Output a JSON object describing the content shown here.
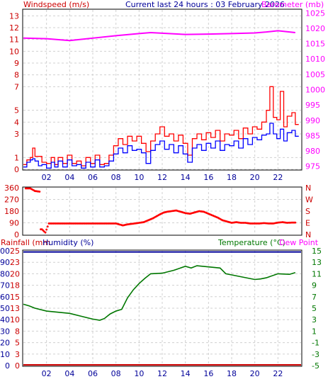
{
  "header": {
    "windspeed_label": "Windspeed (m/s)",
    "title": "Current last 24 hours : 03 February 2026",
    "barometer_label": "Barometer (mb)"
  },
  "footer": {
    "rainfall_label": "Rainfall (mm",
    "humidity_label": "Humidity (%)",
    "temperature_label": "Temperature (°C)",
    "dewpoint_label": "Dew Point"
  },
  "colors": {
    "wind_gust": "#ff0000",
    "wind_avg": "#0000ff",
    "barometer": "#ff00ff",
    "direction": "#ff0000",
    "temperature": "#007700",
    "humidity": "#000099",
    "rainfall": "#cc0000",
    "left_axis_text": "#cc0000",
    "right_axis_text": "#ff00ff",
    "grid": "#d0d0d0"
  },
  "chart_data": [
    {
      "type": "line",
      "name": "wind-barometer",
      "x_tick_labels": [
        "02",
        "04",
        "06",
        "08",
        "10",
        "12",
        "14",
        "16",
        "18",
        "20",
        "22"
      ],
      "x_tick_hours": [
        2,
        4,
        6,
        8,
        10,
        12,
        14,
        16,
        18,
        20,
        22
      ],
      "xlim": [
        0,
        24
      ],
      "y_left": {
        "ticks": [
          0,
          1,
          3,
          4,
          5,
          7,
          8,
          9,
          10,
          11,
          12,
          13
        ],
        "ylim": [
          0,
          13.5
        ]
      },
      "y_right": {
        "ticks": [
          975,
          980,
          985,
          990,
          995,
          1000,
          1005,
          1010,
          1015,
          1020,
          1025
        ],
        "ylim": [
          974,
          1026
        ]
      },
      "series": [
        {
          "key": "gust",
          "axis": "left",
          "points": [
            [
              0,
              0.4
            ],
            [
              0.3,
              0.8
            ],
            [
              0.6,
              1.0
            ],
            [
              0.8,
              1.8
            ],
            [
              1.0,
              1.1
            ],
            [
              1.3,
              1.1
            ],
            [
              1.6,
              0.6
            ],
            [
              2.0,
              0.5
            ],
            [
              2.4,
              1.0
            ],
            [
              2.7,
              0.4
            ],
            [
              3.0,
              1.0
            ],
            [
              3.4,
              0.5
            ],
            [
              3.8,
              1.2
            ],
            [
              4.2,
              0.5
            ],
            [
              4.6,
              0.7
            ],
            [
              5.0,
              0.3
            ],
            [
              5.4,
              1.0
            ],
            [
              5.8,
              0.5
            ],
            [
              6.2,
              1.2
            ],
            [
              6.6,
              0.4
            ],
            [
              7.0,
              0.5
            ],
            [
              7.4,
              1.2
            ],
            [
              7.8,
              2.0
            ],
            [
              8.2,
              2.6
            ],
            [
              8.6,
              2.1
            ],
            [
              9.0,
              2.8
            ],
            [
              9.4,
              2.4
            ],
            [
              9.8,
              2.8
            ],
            [
              10.2,
              2.2
            ],
            [
              10.6,
              1.5
            ],
            [
              11.0,
              2.4
            ],
            [
              11.4,
              3.0
            ],
            [
              11.8,
              3.6
            ],
            [
              12.2,
              2.8
            ],
            [
              12.6,
              3.0
            ],
            [
              13.0,
              2.4
            ],
            [
              13.4,
              2.9
            ],
            [
              13.8,
              2.2
            ],
            [
              14.2,
              1.2
            ],
            [
              14.6,
              2.6
            ],
            [
              15.0,
              3.0
            ],
            [
              15.4,
              2.5
            ],
            [
              15.8,
              3.1
            ],
            [
              16.2,
              2.7
            ],
            [
              16.6,
              3.3
            ],
            [
              17.0,
              2.4
            ],
            [
              17.4,
              3.0
            ],
            [
              17.8,
              2.9
            ],
            [
              18.2,
              3.3
            ],
            [
              18.6,
              2.6
            ],
            [
              19.0,
              3.5
            ],
            [
              19.4,
              3.0
            ],
            [
              19.8,
              3.6
            ],
            [
              20.2,
              3.4
            ],
            [
              20.6,
              4.0
            ],
            [
              21.0,
              5.0
            ],
            [
              21.3,
              7.0
            ],
            [
              21.6,
              4.4
            ],
            [
              21.9,
              4.2
            ],
            [
              22.2,
              6.6
            ],
            [
              22.5,
              3.6
            ],
            [
              22.8,
              4.5
            ],
            [
              23.2,
              4.8
            ],
            [
              23.5,
              3.8
            ]
          ]
        },
        {
          "key": "average",
          "axis": "left",
          "points": [
            [
              0,
              0.2
            ],
            [
              0.3,
              0.6
            ],
            [
              0.6,
              0.8
            ],
            [
              0.8,
              0.9
            ],
            [
              1.0,
              0.7
            ],
            [
              1.3,
              0.3
            ],
            [
              1.6,
              0.4
            ],
            [
              2.0,
              0.1
            ],
            [
              2.4,
              0.6
            ],
            [
              2.7,
              0.2
            ],
            [
              3.0,
              0.7
            ],
            [
              3.4,
              0.2
            ],
            [
              3.8,
              0.8
            ],
            [
              4.2,
              0.3
            ],
            [
              4.6,
              0.4
            ],
            [
              5.0,
              0.1
            ],
            [
              5.4,
              0.6
            ],
            [
              5.8,
              0.2
            ],
            [
              6.2,
              0.8
            ],
            [
              6.6,
              0.2
            ],
            [
              7.0,
              0.3
            ],
            [
              7.4,
              0.7
            ],
            [
              7.8,
              1.3
            ],
            [
              8.2,
              1.8
            ],
            [
              8.6,
              1.4
            ],
            [
              9.0,
              2.0
            ],
            [
              9.4,
              1.6
            ],
            [
              9.8,
              1.7
            ],
            [
              10.2,
              1.4
            ],
            [
              10.6,
              0.5
            ],
            [
              11.0,
              1.6
            ],
            [
              11.4,
              2.1
            ],
            [
              11.8,
              2.4
            ],
            [
              12.2,
              1.7
            ],
            [
              12.6,
              2.1
            ],
            [
              13.0,
              1.4
            ],
            [
              13.4,
              2.0
            ],
            [
              13.8,
              1.3
            ],
            [
              14.2,
              0.6
            ],
            [
              14.6,
              1.8
            ],
            [
              15.0,
              2.1
            ],
            [
              15.4,
              1.6
            ],
            [
              15.8,
              2.2
            ],
            [
              16.2,
              1.8
            ],
            [
              16.6,
              2.4
            ],
            [
              17.0,
              1.6
            ],
            [
              17.4,
              2.1
            ],
            [
              17.8,
              2.0
            ],
            [
              18.2,
              2.4
            ],
            [
              18.6,
              1.8
            ],
            [
              19.0,
              2.6
            ],
            [
              19.4,
              2.1
            ],
            [
              19.8,
              2.7
            ],
            [
              20.2,
              2.5
            ],
            [
              20.6,
              2.9
            ],
            [
              21.0,
              3.0
            ],
            [
              21.3,
              3.9
            ],
            [
              21.6,
              3.0
            ],
            [
              21.9,
              2.6
            ],
            [
              22.2,
              3.4
            ],
            [
              22.5,
              2.4
            ],
            [
              22.8,
              3.1
            ],
            [
              23.2,
              3.3
            ],
            [
              23.5,
              2.8
            ]
          ]
        },
        {
          "key": "barometer",
          "axis": "right",
          "points": [
            [
              0,
              1016.8
            ],
            [
              2,
              1016.6
            ],
            [
              4,
              1016.0
            ],
            [
              6,
              1016.8
            ],
            [
              8,
              1017.6
            ],
            [
              10,
              1018.3
            ],
            [
              11,
              1018.6
            ],
            [
              12,
              1018.4
            ],
            [
              14,
              1018.0
            ],
            [
              16,
              1018.1
            ],
            [
              18,
              1018.3
            ],
            [
              20,
              1018.5
            ],
            [
              21,
              1018.8
            ],
            [
              22,
              1019.2
            ],
            [
              23,
              1018.8
            ],
            [
              23.5,
              1018.6
            ]
          ]
        }
      ]
    },
    {
      "type": "scatter",
      "name": "wind-direction",
      "y_left": {
        "ticks": [
          0,
          90,
          180,
          270,
          360
        ],
        "ylim": [
          0,
          360
        ]
      },
      "y_right": {
        "ticks": [
          "N",
          "E",
          "S",
          "W",
          "N"
        ]
      },
      "series": [
        {
          "key": "direction",
          "points": [
            [
              0.2,
              355
            ],
            [
              0.6,
              355
            ],
            [
              1.0,
              335
            ],
            [
              1.4,
              330
            ],
            [
              1.6,
              40
            ],
            [
              1.9,
              15
            ],
            [
              2.2,
              85
            ],
            [
              3,
              85
            ],
            [
              4,
              85
            ],
            [
              5,
              85
            ],
            [
              6,
              85
            ],
            [
              7,
              85
            ],
            [
              8,
              85
            ],
            [
              8.6,
              70
            ],
            [
              9.0,
              78
            ],
            [
              9.6,
              85
            ],
            [
              10,
              90
            ],
            [
              10.4,
              95
            ],
            [
              10.8,
              110
            ],
            [
              11.2,
              125
            ],
            [
              11.5,
              140
            ],
            [
              11.8,
              155
            ],
            [
              12.1,
              168
            ],
            [
              12.4,
              175
            ],
            [
              12.8,
              180
            ],
            [
              13.2,
              185
            ],
            [
              13.6,
              175
            ],
            [
              14.0,
              165
            ],
            [
              14.4,
              160
            ],
            [
              14.8,
              170
            ],
            [
              15.2,
              180
            ],
            [
              15.6,
              175
            ],
            [
              16.0,
              160
            ],
            [
              16.4,
              145
            ],
            [
              16.8,
              130
            ],
            [
              17.2,
              110
            ],
            [
              17.6,
              100
            ],
            [
              18.0,
              90
            ],
            [
              18.4,
              95
            ],
            [
              18.8,
              90
            ],
            [
              19.2,
              90
            ],
            [
              19.6,
              85
            ],
            [
              20.0,
              85
            ],
            [
              20.4,
              85
            ],
            [
              20.8,
              88
            ],
            [
              21.2,
              85
            ],
            [
              21.6,
              85
            ],
            [
              22.0,
              92
            ],
            [
              22.4,
              95
            ],
            [
              22.8,
              90
            ],
            [
              23.2,
              92
            ],
            [
              23.5,
              92
            ]
          ]
        }
      ]
    },
    {
      "type": "line",
      "name": "temperature-humidity",
      "y_left_outer": {
        "ticks": [
          0,
          10,
          20,
          30,
          40,
          50,
          60,
          70,
          80,
          90,
          100
        ],
        "ylim": [
          0,
          100
        ]
      },
      "y_left_inner": {
        "ticks": [
          0,
          3,
          5,
          8,
          10,
          13,
          15,
          18,
          20,
          23,
          25
        ],
        "ylim": [
          0,
          25
        ]
      },
      "y_right": {
        "ticks": [
          -5,
          -3,
          -1,
          1,
          3,
          5,
          7,
          9,
          11,
          13,
          15
        ],
        "ylim": [
          -5,
          15
        ]
      },
      "series": [
        {
          "key": "temperature",
          "axis": "right",
          "points": [
            [
              0,
              5.7
            ],
            [
              0.5,
              5.4
            ],
            [
              1,
              5.0
            ],
            [
              2,
              4.5
            ],
            [
              3,
              4.3
            ],
            [
              4,
              4.1
            ],
            [
              5,
              3.6
            ],
            [
              6,
              3.1
            ],
            [
              6.6,
              2.9
            ],
            [
              7,
              3.2
            ],
            [
              7.5,
              4.0
            ],
            [
              8,
              4.5
            ],
            [
              8.5,
              4.8
            ],
            [
              9,
              6.8
            ],
            [
              9.5,
              8.2
            ],
            [
              10,
              9.3
            ],
            [
              10.5,
              10.2
            ],
            [
              11,
              11.0
            ],
            [
              12,
              11.1
            ],
            [
              13,
              11.6
            ],
            [
              14,
              12.3
            ],
            [
              14.5,
              12.0
            ],
            [
              15,
              12.4
            ],
            [
              16,
              12.2
            ],
            [
              17,
              12.0
            ],
            [
              17.5,
              11.0
            ],
            [
              18,
              10.8
            ],
            [
              19,
              10.4
            ],
            [
              20,
              10.0
            ],
            [
              20.5,
              10.1
            ],
            [
              21,
              10.3
            ],
            [
              22,
              11.0
            ],
            [
              23,
              10.9
            ],
            [
              23.5,
              11.2
            ]
          ]
        },
        {
          "key": "humidity",
          "axis": "left_outer",
          "points": [
            [
              0,
              99
            ],
            [
              24,
              99
            ]
          ]
        },
        {
          "key": "rainfall",
          "axis": "left_inner",
          "points": [
            [
              0,
              0
            ],
            [
              24,
              0
            ]
          ]
        }
      ]
    }
  ]
}
